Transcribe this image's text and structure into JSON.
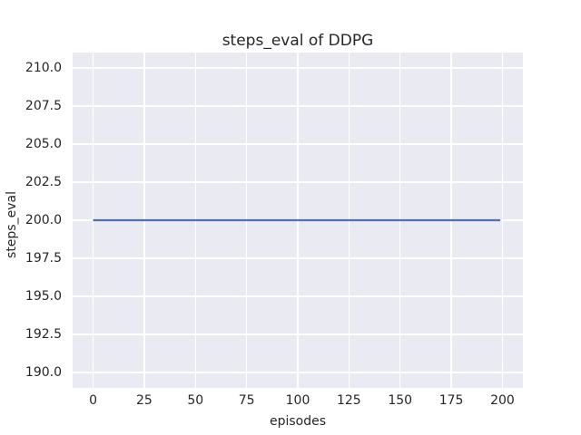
{
  "chart_data": {
    "type": "line",
    "title": "steps_eval of DDPG",
    "xlabel": "episodes",
    "ylabel": "steps_eval",
    "xlim": [
      -10,
      210
    ],
    "ylim": [
      189,
      211
    ],
    "x_ticks": [
      0,
      25,
      50,
      75,
      100,
      125,
      150,
      175,
      200
    ],
    "x_tick_labels": [
      "0",
      "25",
      "50",
      "75",
      "100",
      "125",
      "150",
      "175",
      "200"
    ],
    "y_ticks": [
      190.0,
      192.5,
      195.0,
      197.5,
      200.0,
      202.5,
      205.0,
      207.5,
      210.0
    ],
    "y_tick_labels": [
      "190.0",
      "192.5",
      "195.0",
      "197.5",
      "200.0",
      "202.5",
      "205.0",
      "207.5",
      "210.0"
    ],
    "grid": true,
    "legend": null,
    "series": [
      {
        "name": "steps_eval",
        "x": [
          0,
          199
        ],
        "y": [
          200,
          200
        ],
        "color": "#4c72b0",
        "linewidth": 2.2
      }
    ],
    "colors": {
      "plot_background": "#eaeaf2",
      "figure_background": "#ffffff",
      "gridline": "#ffffff",
      "text": "#262626",
      "line": "#4c72b0"
    }
  }
}
